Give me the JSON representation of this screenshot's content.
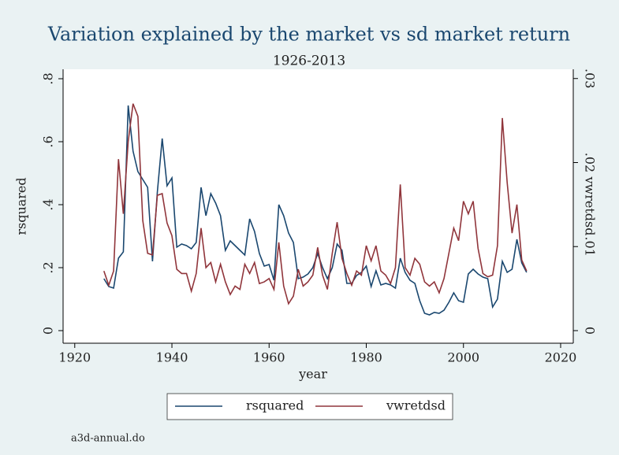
{
  "chart_data": {
    "type": "line",
    "title": "Variation explained by the market vs sd market return",
    "subtitle": "1926-2013",
    "x_label": "year",
    "y_label": "rsquared",
    "y2_label": "vwretdsd",
    "note": "a3d-annual.do",
    "legend": "bottom",
    "x": [
      1926,
      1927,
      1928,
      1929,
      1930,
      1931,
      1932,
      1933,
      1934,
      1935,
      1936,
      1937,
      1938,
      1939,
      1940,
      1941,
      1942,
      1943,
      1944,
      1945,
      1946,
      1947,
      1948,
      1949,
      1950,
      1951,
      1952,
      1953,
      1954,
      1955,
      1956,
      1957,
      1958,
      1959,
      1960,
      1961,
      1962,
      1963,
      1964,
      1965,
      1966,
      1967,
      1968,
      1969,
      1970,
      1971,
      1972,
      1973,
      1974,
      1975,
      1976,
      1977,
      1978,
      1979,
      1980,
      1981,
      1982,
      1983,
      1984,
      1985,
      1986,
      1987,
      1988,
      1989,
      1990,
      1991,
      1992,
      1993,
      1994,
      1995,
      1996,
      1997,
      1998,
      1999,
      2000,
      2001,
      2002,
      2003,
      2004,
      2005,
      2006,
      2007,
      2008,
      2009,
      2010,
      2011,
      2012,
      2013
    ],
    "series": [
      {
        "name": "rsquared",
        "color": "#1a476f",
        "axis": "y",
        "values": [
          0.165,
          0.14,
          0.135,
          0.23,
          0.25,
          0.715,
          0.57,
          0.505,
          0.48,
          0.455,
          0.22,
          0.44,
          0.61,
          0.46,
          0.485,
          0.265,
          0.275,
          0.27,
          0.26,
          0.28,
          0.455,
          0.365,
          0.435,
          0.405,
          0.365,
          0.255,
          0.285,
          0.27,
          0.255,
          0.24,
          0.355,
          0.315,
          0.245,
          0.205,
          0.21,
          0.16,
          0.4,
          0.365,
          0.31,
          0.28,
          0.165,
          0.17,
          0.18,
          0.2,
          0.245,
          0.2,
          0.165,
          0.2,
          0.275,
          0.255,
          0.15,
          0.15,
          0.175,
          0.185,
          0.205,
          0.14,
          0.19,
          0.145,
          0.15,
          0.145,
          0.135,
          0.23,
          0.185,
          0.16,
          0.15,
          0.095,
          0.055,
          0.05,
          0.058,
          0.055,
          0.065,
          0.09,
          0.12,
          0.095,
          0.09,
          0.18,
          0.195,
          0.18,
          0.17,
          0.165,
          0.075,
          0.1,
          0.22,
          0.185,
          0.195,
          0.29,
          0.215,
          0.185
        ]
      },
      {
        "name": "vwretdsd",
        "color": "#90353b",
        "axis": "y2",
        "values": [
          0.0071,
          0.0054,
          0.0071,
          0.0204,
          0.0139,
          0.0225,
          0.027,
          0.0255,
          0.0131,
          0.0092,
          0.009,
          0.0161,
          0.0163,
          0.0128,
          0.0113,
          0.0073,
          0.0068,
          0.0068,
          0.0047,
          0.0068,
          0.0122,
          0.0075,
          0.0081,
          0.0058,
          0.0079,
          0.0058,
          0.0043,
          0.0053,
          0.0049,
          0.0079,
          0.0068,
          0.0081,
          0.0056,
          0.0058,
          0.0062,
          0.0049,
          0.0105,
          0.0053,
          0.0032,
          0.0041,
          0.0073,
          0.0053,
          0.0058,
          0.0066,
          0.0099,
          0.0066,
          0.0049,
          0.0092,
          0.0129,
          0.0086,
          0.0068,
          0.0054,
          0.0071,
          0.0066,
          0.0101,
          0.0083,
          0.0101,
          0.0071,
          0.0066,
          0.0056,
          0.0075,
          0.0174,
          0.0075,
          0.0066,
          0.0086,
          0.0079,
          0.0058,
          0.0053,
          0.0058,
          0.0045,
          0.0062,
          0.0092,
          0.0122,
          0.0107,
          0.0154,
          0.0139,
          0.0154,
          0.0098,
          0.0068,
          0.0064,
          0.0066,
          0.0101,
          0.0253,
          0.0176,
          0.0116,
          0.015,
          0.0084,
          0.0071
        ]
      }
    ],
    "xlim": [
      1917.6,
      2022.6
    ],
    "xticks": [
      1920,
      1940,
      1960,
      1980,
      2000,
      2020
    ],
    "ylim": [
      -0.04,
      0.83
    ],
    "yticks": [
      0,
      {
        "value": 0.2,
        "label": ".2"
      },
      {
        "value": 0.4,
        "label": ".4"
      },
      {
        "value": 0.6,
        "label": ".6"
      },
      {
        "value": 0.8,
        "label": ".8"
      }
    ],
    "y2lim": [
      -0.0015,
      0.0311
    ],
    "y2ticks": [
      0,
      {
        "value": 0.01,
        "label": ".01"
      },
      {
        "value": 0.02,
        "label": ".02"
      },
      {
        "value": 0.03,
        "label": ".03"
      }
    ]
  }
}
